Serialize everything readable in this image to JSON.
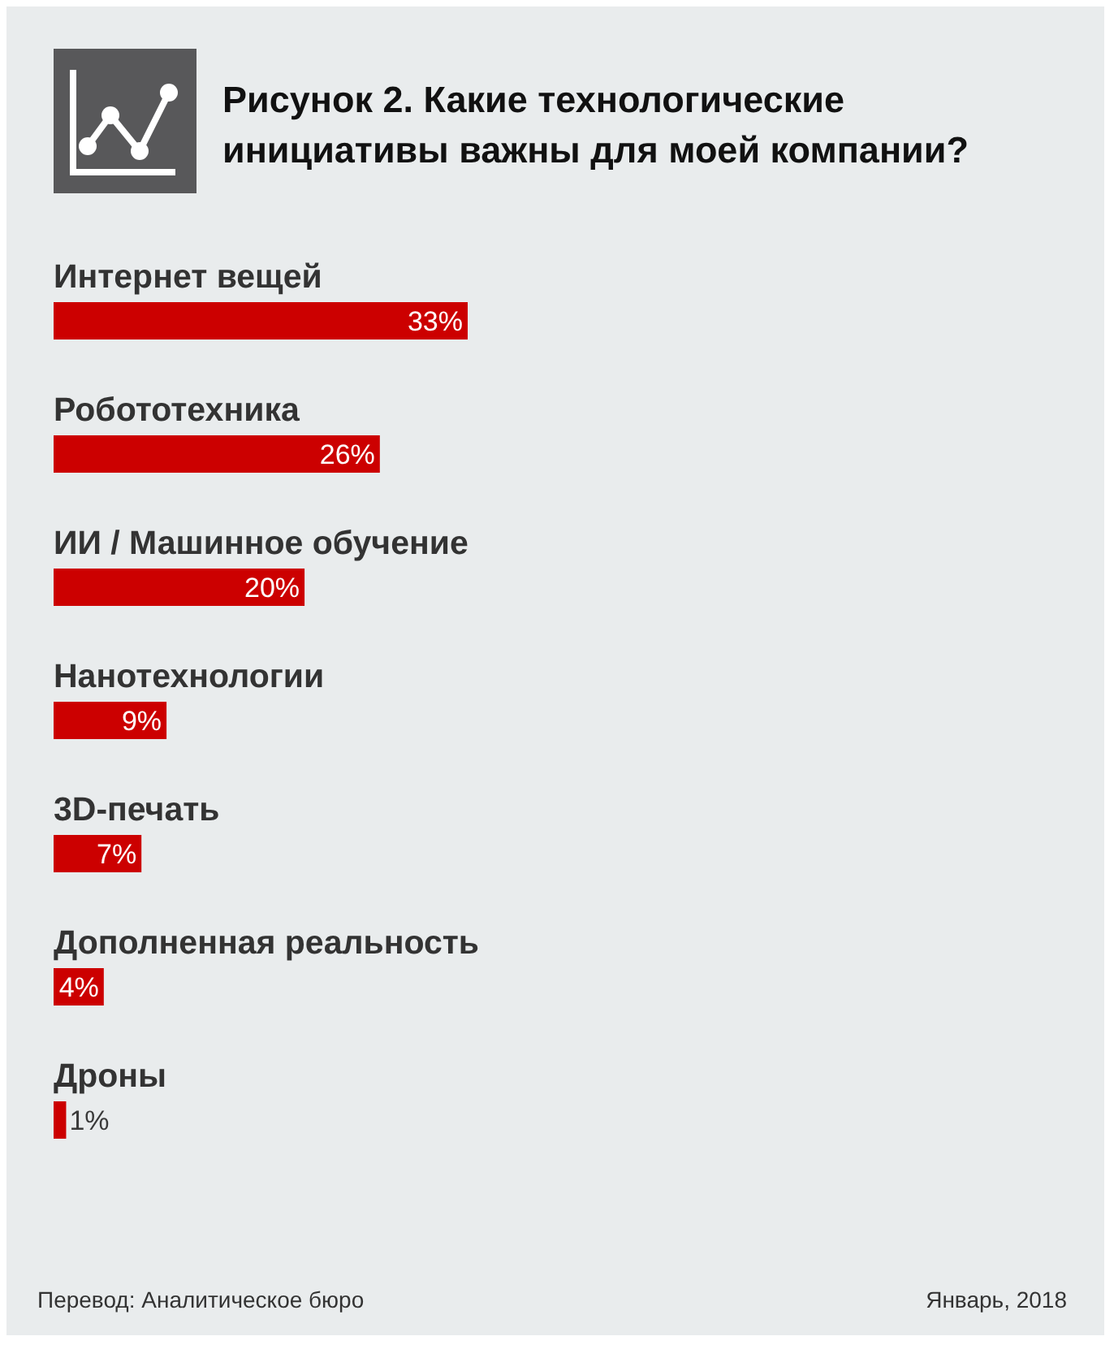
{
  "chart_data": {
    "type": "bar",
    "orientation": "horizontal",
    "title": "Рисунок 2. Какие технологические инициативы важны для моей компании?",
    "categories": [
      "Интернет вещей",
      "Робототехника",
      "ИИ / Машинное обучение",
      "Нанотехнологии",
      "3D-печать",
      "Дополненная реальность",
      "Дроны"
    ],
    "values": [
      33,
      26,
      20,
      9,
      7,
      4,
      1
    ],
    "value_labels": [
      "33%",
      "26%",
      "20%",
      "9%",
      "7%",
      "4%",
      "1%"
    ],
    "color": "#cc0000",
    "annotations": [
      "Перевод: Аналитическое бюро",
      "Январь, 2018"
    ]
  }
}
